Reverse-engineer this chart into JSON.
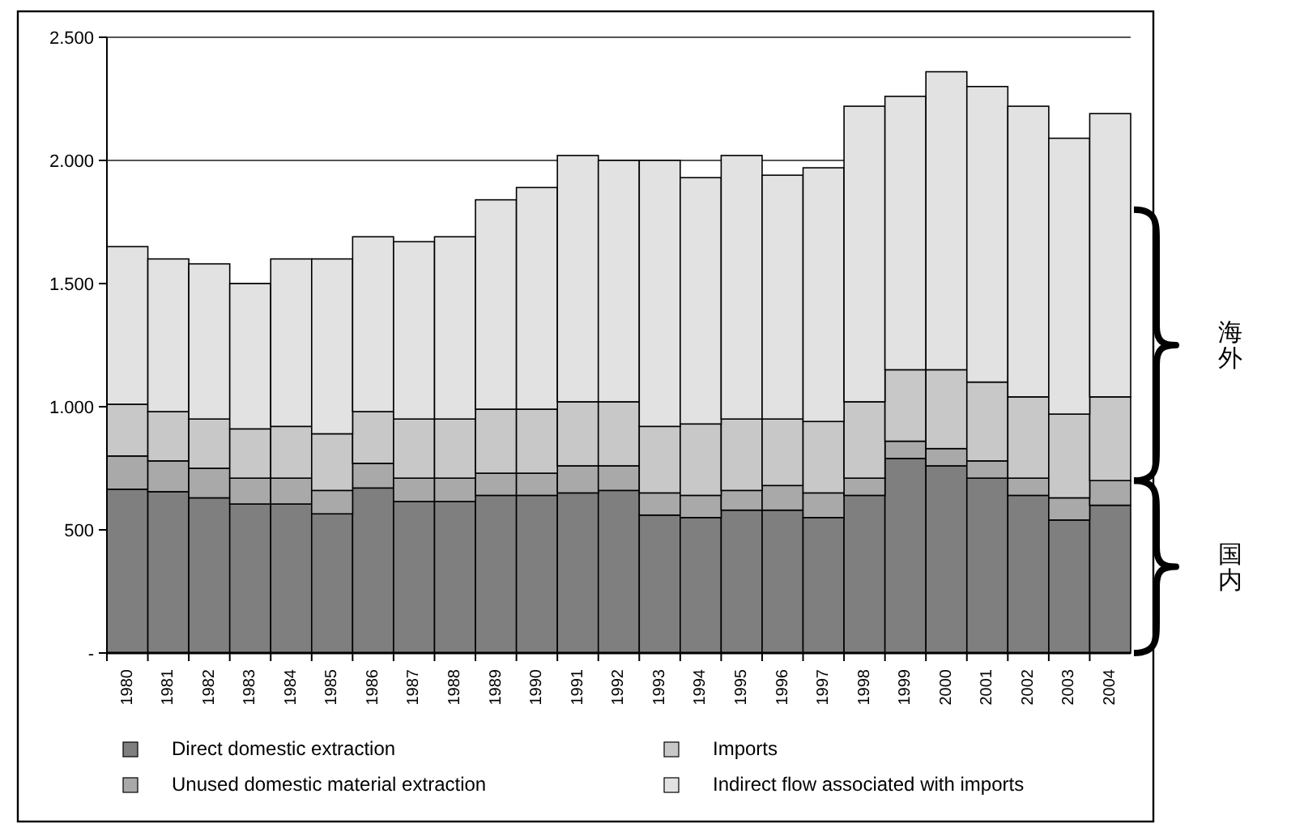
{
  "chart_data": {
    "type": "bar",
    "stacked": true,
    "categories": [
      "1980",
      "1981",
      "1982",
      "1983",
      "1984",
      "1985",
      "1986",
      "1987",
      "1988",
      "1989",
      "1990",
      "1991",
      "1992",
      "1993",
      "1994",
      "1995",
      "1996",
      "1997",
      "1998",
      "1999",
      "2000",
      "2001",
      "2002",
      "2003",
      "2004"
    ],
    "series": [
      {
        "name": "Direct domestic extraction",
        "color": "#7f7f7f",
        "values": [
          665,
          655,
          630,
          605,
          605,
          565,
          670,
          615,
          615,
          640,
          640,
          650,
          660,
          560,
          550,
          580,
          580,
          550,
          640,
          790,
          760,
          710,
          640,
          540,
          600
        ]
      },
      {
        "name": "Unused domestic material extraction",
        "color": "#a9a9a9",
        "values": [
          135,
          125,
          120,
          105,
          105,
          95,
          100,
          95,
          95,
          90,
          90,
          110,
          100,
          90,
          90,
          80,
          100,
          100,
          70,
          70,
          70,
          70,
          70,
          90,
          100
        ]
      },
      {
        "name": "Imports",
        "color": "#c8c8c8",
        "values": [
          210,
          200,
          200,
          200,
          210,
          230,
          210,
          240,
          240,
          260,
          260,
          260,
          260,
          270,
          290,
          290,
          270,
          290,
          310,
          290,
          320,
          320,
          330,
          340,
          340
        ]
      },
      {
        "name": "Indirect flow associated with imports",
        "color": "#e2e2e2",
        "values": [
          640,
          620,
          630,
          590,
          680,
          710,
          710,
          720,
          740,
          850,
          900,
          1000,
          980,
          1080,
          1000,
          1070,
          990,
          1030,
          1200,
          1110,
          1210,
          1200,
          1180,
          1120,
          1150
        ]
      }
    ],
    "ylim": [
      0,
      2500
    ],
    "yticks": [
      {
        "value": 0,
        "label": "-"
      },
      {
        "value": 500,
        "label": "500"
      },
      {
        "value": 1000,
        "label": "1.000"
      },
      {
        "value": 1500,
        "label": "1.500"
      },
      {
        "value": 2000,
        "label": "2.000"
      },
      {
        "value": 2500,
        "label": "2.500"
      }
    ],
    "grid": "y",
    "legend": "bottom",
    "annotations": [
      "海外",
      "国内"
    ]
  }
}
